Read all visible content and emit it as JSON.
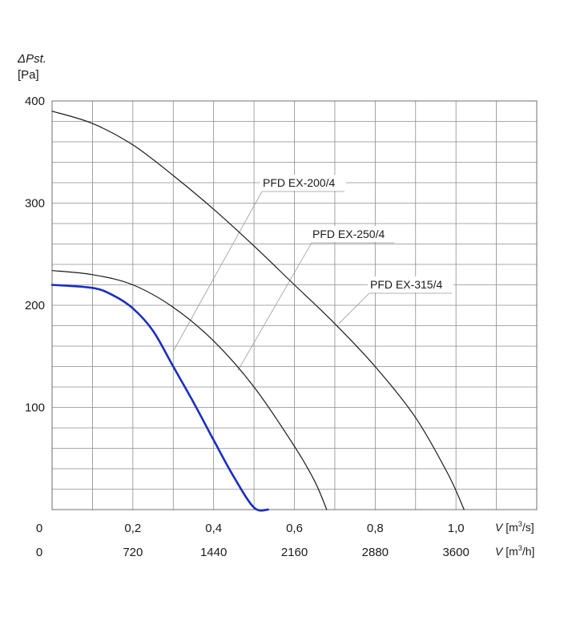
{
  "chart_data": {
    "type": "line",
    "y_axis": {
      "label_symbol": "ΔPst.",
      "label_unit": "[Pa]",
      "range": [
        0,
        400
      ],
      "ticks": [
        100,
        200,
        300,
        400
      ],
      "minor_step": 20
    },
    "x_axis": {
      "range": [
        0,
        1.2
      ],
      "grid_step": 0.1,
      "ticks_m3s": [
        0,
        0.2,
        0.4,
        0.6,
        0.8,
        1.0
      ],
      "tick_labels_m3s": [
        "0",
        "0,2",
        "0,4",
        "0,6",
        "0,8",
        "1,0"
      ],
      "label_m3s": {
        "symbol": "V",
        "unit_pre": " [m",
        "sup": "3",
        "unit_post": "/s]"
      },
      "tick_labels_m3h": [
        "0",
        "720",
        "1440",
        "2160",
        "2880",
        "3600"
      ],
      "label_m3h": {
        "symbol": "V",
        "unit_pre": " [m",
        "sup": "3",
        "unit_post": "/h]"
      }
    },
    "grid": true,
    "series": [
      {
        "name": "PFD EX-315/4",
        "color": "#1a1a1a",
        "points": [
          [
            0,
            390
          ],
          [
            0.1,
            378
          ],
          [
            0.2,
            357
          ],
          [
            0.3,
            327
          ],
          [
            0.4,
            294
          ],
          [
            0.5,
            258
          ],
          [
            0.6,
            220
          ],
          [
            0.7,
            182
          ],
          [
            0.8,
            140
          ],
          [
            0.9,
            90
          ],
          [
            0.98,
            35
          ],
          [
            1.02,
            0
          ]
        ]
      },
      {
        "name": "PFD EX-250/4",
        "color": "#1a1a1a",
        "points": [
          [
            0,
            234
          ],
          [
            0.1,
            230
          ],
          [
            0.2,
            220
          ],
          [
            0.3,
            198
          ],
          [
            0.4,
            165
          ],
          [
            0.5,
            120
          ],
          [
            0.6,
            62
          ],
          [
            0.65,
            28
          ],
          [
            0.68,
            0
          ]
        ]
      },
      {
        "name": "PFD EX-200/4",
        "color": "#1a2fbf",
        "points": [
          [
            0,
            220
          ],
          [
            0.1,
            217
          ],
          [
            0.15,
            210
          ],
          [
            0.2,
            197
          ],
          [
            0.25,
            175
          ],
          [
            0.3,
            140
          ],
          [
            0.35,
            105
          ],
          [
            0.4,
            68
          ],
          [
            0.45,
            32
          ],
          [
            0.5,
            2
          ],
          [
            0.535,
            0
          ]
        ]
      }
    ],
    "annotations": [
      {
        "text": "PFD EX-200/4",
        "anchor": [
          0.3,
          155
        ]
      },
      {
        "text": "PFD EX-250/4",
        "anchor": [
          0.46,
          136
        ]
      },
      {
        "text": "PFD EX-315/4",
        "anchor": [
          0.71,
          182
        ]
      }
    ]
  }
}
